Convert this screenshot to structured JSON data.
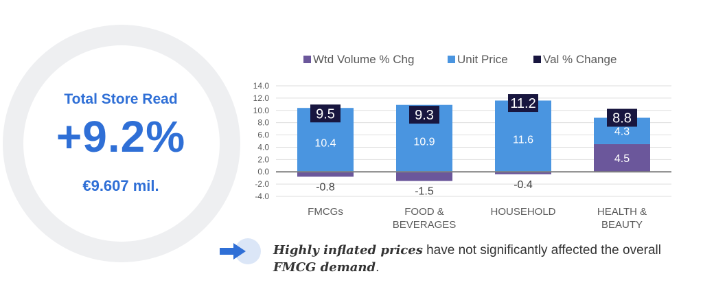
{
  "kpi": {
    "title": "Total Store Read",
    "value": "+9.2%",
    "sub": "€9.607 mil."
  },
  "colors": {
    "accent": "#2f6fd6",
    "volume": "#6b579b",
    "unit_price": "#4a95e0",
    "val_change": "#18163f",
    "ring": "#eeeff1",
    "arrow": "#2f6fd6"
  },
  "chart_data": {
    "type": "bar",
    "categories": [
      [
        "FMCGs"
      ],
      [
        "FOOD &",
        "BEVERAGES"
      ],
      [
        "HOUSEHOLD"
      ],
      [
        "HEALTH &",
        "BEAUTY"
      ]
    ],
    "series": [
      {
        "name": "Wtd Volume % Chg",
        "values": [
          -0.8,
          -1.5,
          -0.4,
          4.5
        ],
        "labels": [
          "-0.8",
          "-1.5",
          "-0.4",
          "4.5"
        ]
      },
      {
        "name": "Unit Price",
        "values": [
          10.4,
          10.9,
          11.6,
          4.3
        ],
        "labels": [
          "10.4",
          "10.9",
          "11.6",
          "4.3"
        ]
      },
      {
        "name": "Val % Change",
        "values": [
          9.5,
          9.3,
          11.2,
          8.8
        ],
        "labels": [
          "9.5",
          "9.3",
          "11.2",
          "8.8"
        ]
      }
    ],
    "ylim": [
      -4.0,
      14.0
    ],
    "yticks": [
      "14.0",
      "12.0",
      "10.0",
      "8.0",
      "6.0",
      "4.0",
      "2.0",
      "0.0",
      "-2.0",
      "-4.0"
    ],
    "grid": true,
    "legend_position": "top"
  },
  "takeaway": {
    "part1": "Highly inflated prices",
    "part2": " have not significantly affected the overall ",
    "part3": "FMCG demand",
    "part4": "."
  }
}
